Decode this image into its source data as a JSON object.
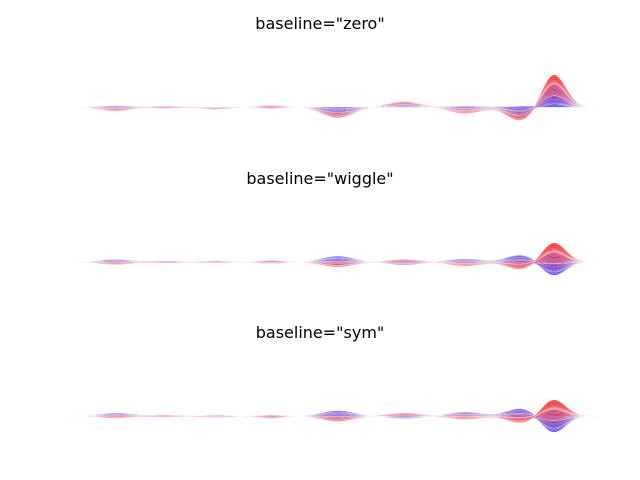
{
  "chart_data": [
    {
      "type": "area",
      "title": "baseline=\"zero\"",
      "baseline": "zero",
      "axis": "off",
      "grid": false,
      "legend": "none",
      "n_layers": 50,
      "n_points": 200,
      "x_range": [
        0,
        199
      ],
      "color_start": "#0000ff",
      "color_end": "#ff0000",
      "edge_color": "#ffffff",
      "ylim": [
        -0.9,
        1.05
      ]
    },
    {
      "type": "area",
      "title": "baseline=\"wiggle\"",
      "baseline": "wiggle",
      "axis": "off",
      "grid": false,
      "legend": "none",
      "n_layers": 50,
      "n_points": 200,
      "x_range": [
        0,
        199
      ],
      "color_start": "#0000ff",
      "color_end": "#ff0000",
      "edge_color": "#ffffff",
      "ylim": [
        -0.9,
        1.05
      ]
    },
    {
      "type": "area",
      "title": "baseline=\"sym\"",
      "baseline": "sym",
      "axis": "off",
      "grid": false,
      "legend": "none",
      "n_layers": 50,
      "n_points": 200,
      "x_range": [
        0,
        199
      ],
      "color_start": "#0000ff",
      "color_end": "#ff0000",
      "edge_color": "#ffffff",
      "ylim": [
        -0.9,
        1.05
      ]
    }
  ]
}
